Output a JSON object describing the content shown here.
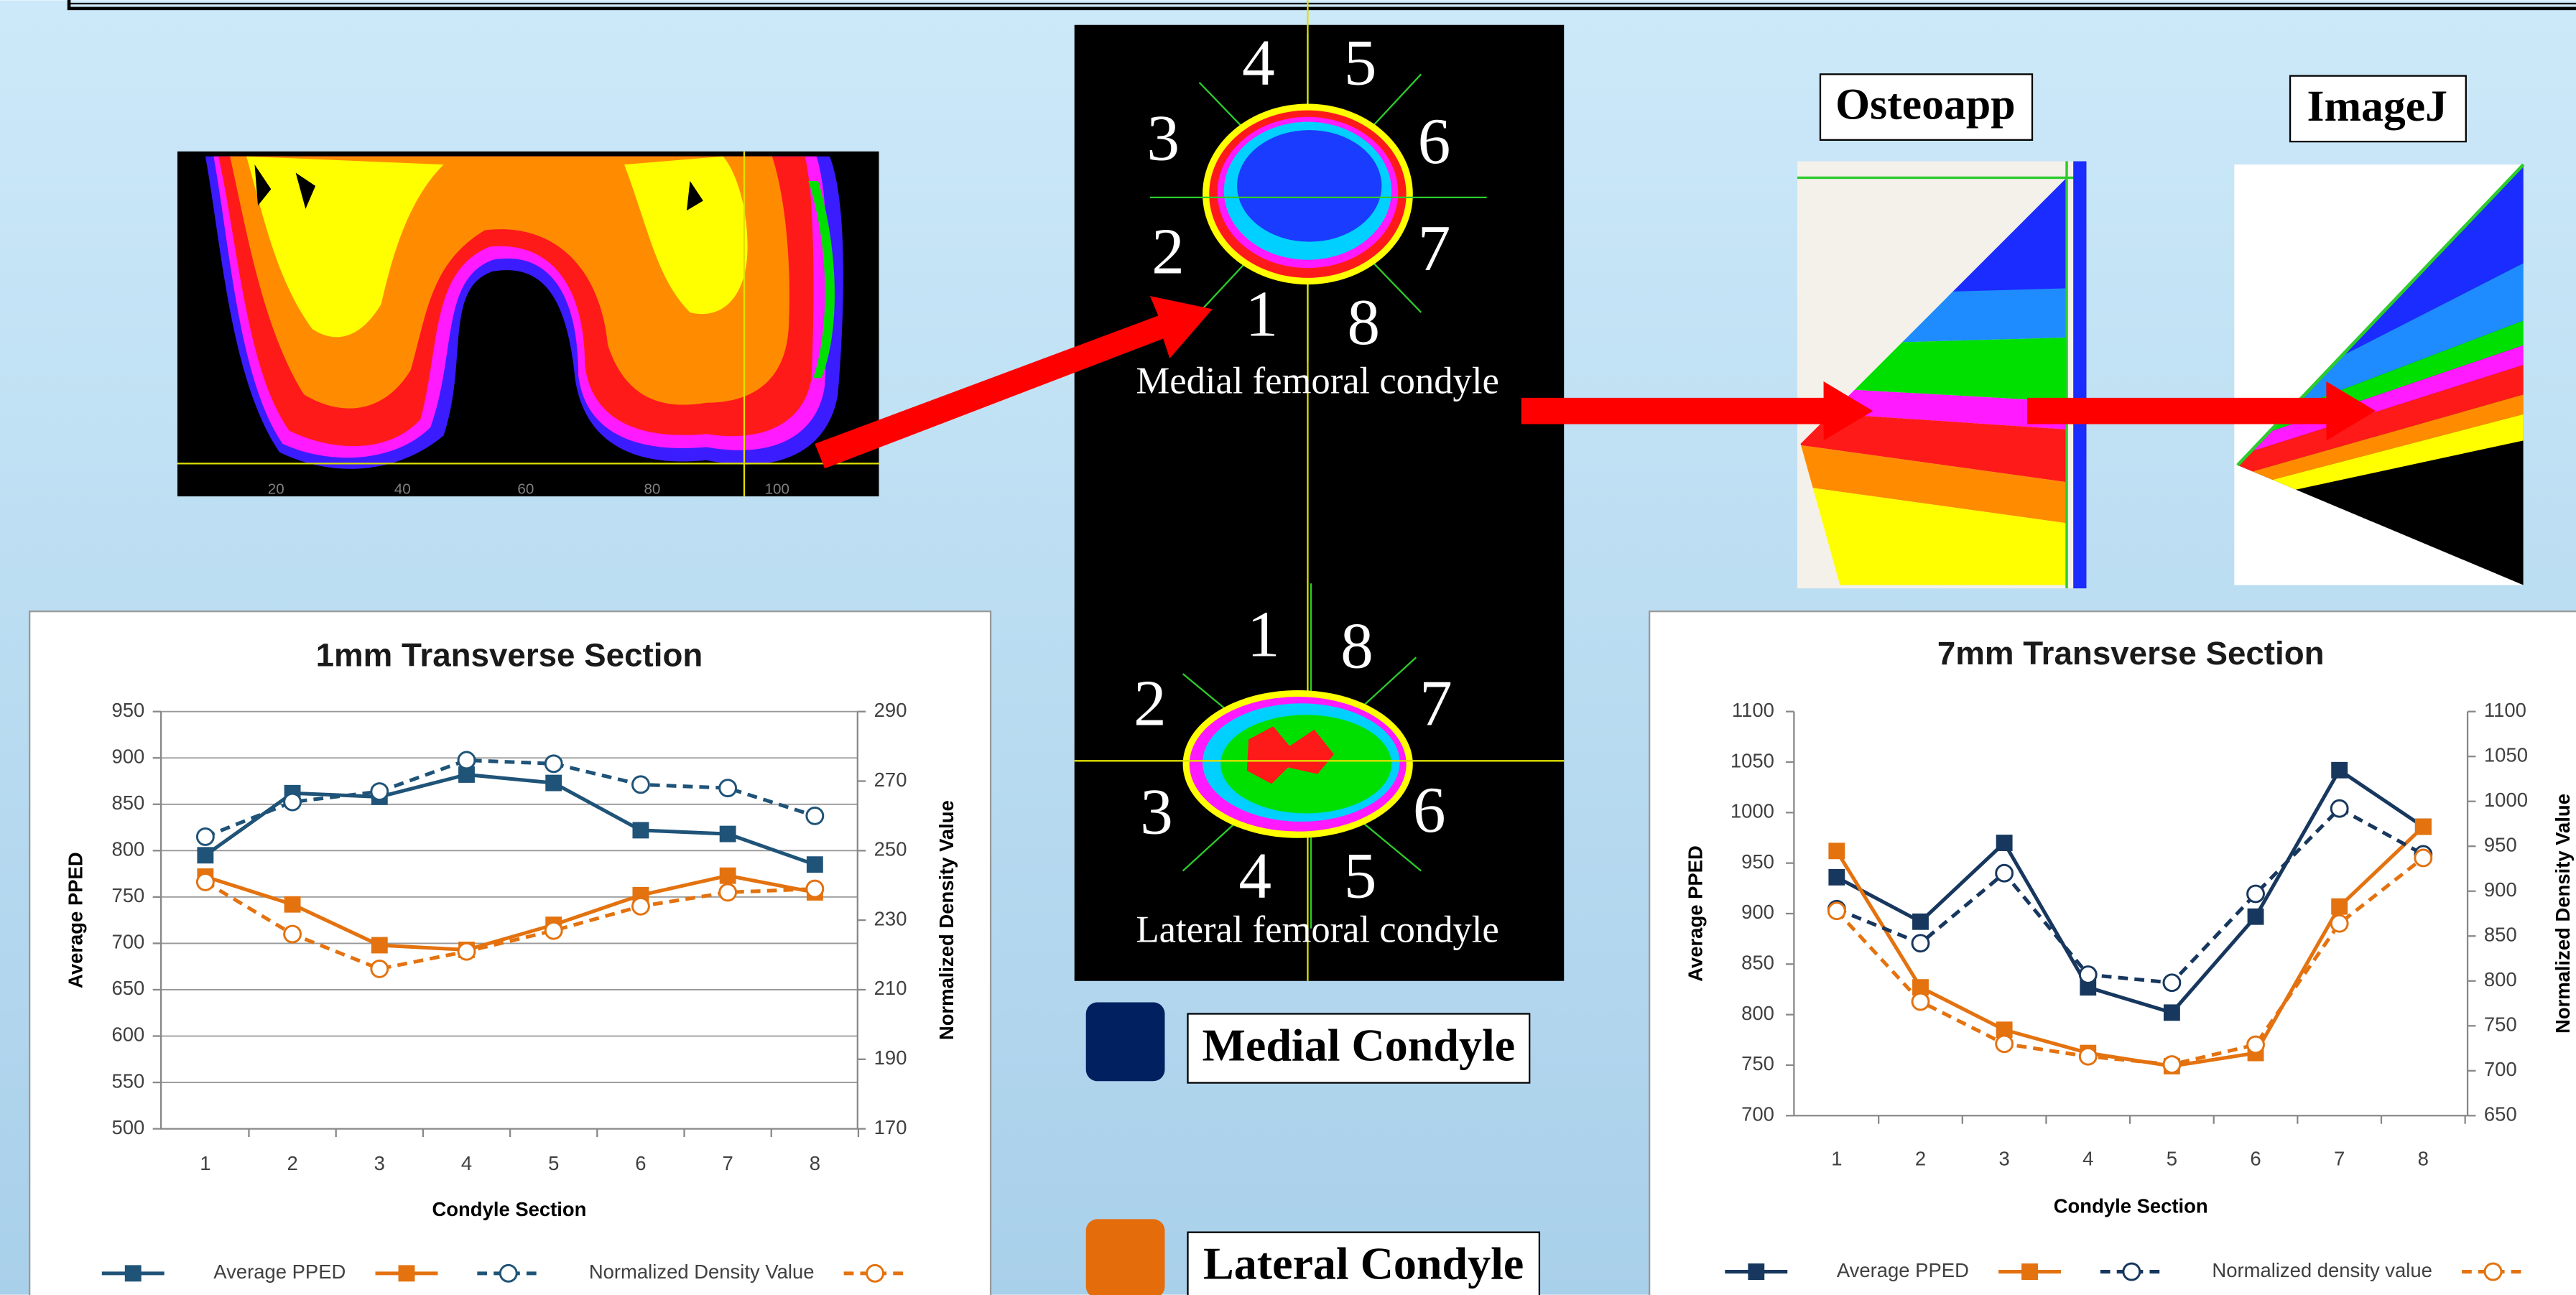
{
  "chart_data": [
    {
      "type": "line",
      "title": "1mm Transverse Section",
      "x_label": "Condyle Section",
      "y_label": "Average PPED",
      "y2_label": "Normalized Density Value",
      "categories": [
        "1",
        "2",
        "3",
        "4",
        "5",
        "6",
        "7",
        "8"
      ],
      "ylim": [
        500,
        950
      ],
      "yticks": [
        500,
        550,
        600,
        650,
        700,
        750,
        800,
        850,
        900,
        950
      ],
      "y2lim": [
        170,
        290
      ],
      "y2ticks": [
        170,
        190,
        210,
        230,
        250,
        270,
        290
      ],
      "grid": true,
      "series": [
        {
          "name": "Average PPED",
          "color": "#1f5378",
          "marker": "square",
          "line_style": "solid",
          "values": [
            795,
            862,
            858,
            882,
            873,
            822,
            818,
            785
          ]
        },
        {
          "color": "#e3720f",
          "marker": "square",
          "line_style": "solid",
          "values": [
            772,
            742,
            698,
            693,
            720,
            752,
            773,
            755
          ]
        },
        {
          "name": "Normalized Density Value",
          "color": "#1f5378",
          "marker": "circle",
          "line_style": "dashed",
          "axis": "y2",
          "values": [
            254,
            264,
            267,
            276,
            275,
            269,
            268,
            260
          ]
        },
        {
          "color": "#e3720f",
          "marker": "circle",
          "line_style": "dashed",
          "axis": "y2",
          "values": [
            241,
            226,
            216,
            221,
            227,
            234,
            238,
            239
          ]
        }
      ]
    },
    {
      "type": "line",
      "title": "7mm Transverse Section",
      "x_label": "Condyle Section",
      "y_label": "Average PPED",
      "y2_label": "Normalized Density Value",
      "categories": [
        "1",
        "2",
        "3",
        "4",
        "5",
        "6",
        "7",
        "8"
      ],
      "ylim": [
        700,
        1100
      ],
      "yticks": [
        700,
        750,
        800,
        850,
        900,
        950,
        1000,
        1050,
        1100
      ],
      "y2lim": [
        650,
        1100
      ],
      "y2ticks": [
        650,
        700,
        750,
        800,
        850,
        900,
        950,
        1000,
        1050,
        1100
      ],
      "grid": false,
      "series": [
        {
          "name": "Average PPED",
          "color": "#17375e",
          "marker": "square",
          "line_style": "solid",
          "values": [
            936,
            892,
            970,
            827,
            802,
            897,
            1042,
            986
          ]
        },
        {
          "color": "#e3720f",
          "marker": "square",
          "line_style": "solid",
          "values": [
            962,
            827,
            785,
            762,
            749,
            762,
            907,
            986
          ]
        },
        {
          "name": "Normalized density value",
          "color": "#17375e",
          "marker": "circle",
          "line_style": "dashed",
          "axis": "y2",
          "values": [
            880,
            842,
            920,
            807,
            798,
            897,
            992,
            941
          ]
        },
        {
          "color": "#e3720f",
          "marker": "circle",
          "line_style": "dashed",
          "axis": "y2",
          "values": [
            878,
            777,
            730,
            716,
            707,
            729,
            864,
            937
          ]
        }
      ]
    }
  ],
  "ct_axis_labels": [
    "20",
    "40",
    "60",
    "80",
    "100"
  ],
  "condyle_panels": [
    {
      "numbers": [
        "1",
        "2",
        "3",
        "4",
        "5",
        "6",
        "7",
        "8"
      ],
      "label": "Medial femoral condyle"
    },
    {
      "numbers": [
        "1",
        "2",
        "3",
        "4",
        "5",
        "6",
        "7",
        "8"
      ],
      "label": "Lateral femoral condyle"
    }
  ],
  "software_labels": [
    "Osteoapp",
    "ImageJ"
  ],
  "legend_boxes": [
    {
      "label": "Medial Condyle",
      "color": "#002060"
    },
    {
      "label": "Lateral Condyle",
      "color": "#e46c0a"
    }
  ]
}
